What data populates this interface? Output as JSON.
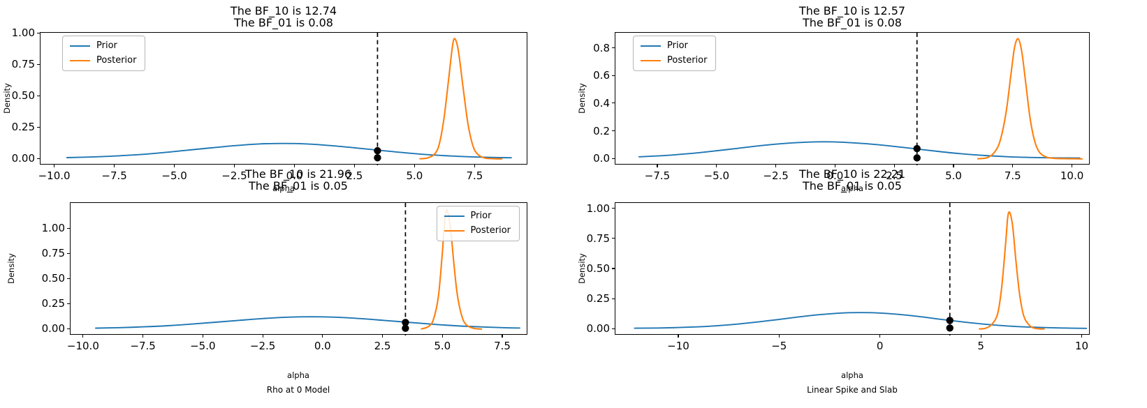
{
  "figure_title": "Prior vs Posterior density comparison with Bayes Factors",
  "colors": {
    "prior": "#1f77b4",
    "posterior": "#ff7f0e",
    "marker": "#000000",
    "vline": "#000000",
    "background": "#ffffff"
  },
  "legend_labels": {
    "prior": "Prior",
    "posterior": "Posterior"
  },
  "chart_data": [
    {
      "type": "line",
      "panel": "top-left",
      "title_lines": [
        "The BF_10 is 12.74",
        "The BF_01 is 0.08"
      ],
      "bf_10": 12.74,
      "bf_01": 0.08,
      "xlabel": "alpha",
      "ylabel": "Density",
      "model_label": null,
      "xlim": [
        -10.6,
        9.7
      ],
      "ylim": [
        -0.048,
        1.008
      ],
      "x_tick_values": [
        -10.0,
        -7.5,
        -5.0,
        -2.5,
        0.0,
        2.5,
        5.0,
        7.5
      ],
      "x_tick_labels": [
        "−10.0",
        "−7.5",
        "−5.0",
        "−2.5",
        "0.0",
        "2.5",
        "5.0",
        "7.5"
      ],
      "y_tick_values": [
        0.0,
        0.25,
        0.5,
        0.75,
        1.0
      ],
      "y_tick_labels": [
        "0.00",
        "0.25",
        "0.50",
        "0.75",
        "1.00"
      ],
      "legend_position": "upper-left",
      "observed_x": 3.43,
      "dot_densities": [
        0.068,
        0.012
      ],
      "series": [
        {
          "name": "Prior",
          "points": [
            [
              -9.5,
              0.013
            ],
            [
              -8.5,
              0.018
            ],
            [
              -7.5,
              0.026
            ],
            [
              -6.5,
              0.037
            ],
            [
              -5.5,
              0.053
            ],
            [
              -4.5,
              0.072
            ],
            [
              -3.5,
              0.091
            ],
            [
              -2.5,
              0.109
            ],
            [
              -1.5,
              0.122
            ],
            [
              -0.5,
              0.126
            ],
            [
              0.5,
              0.122
            ],
            [
              1.5,
              0.109
            ],
            [
              2.5,
              0.091
            ],
            [
              3.5,
              0.072
            ],
            [
              4.5,
              0.053
            ],
            [
              5.5,
              0.037
            ],
            [
              6.5,
              0.026
            ],
            [
              7.5,
              0.018
            ],
            [
              8.5,
              0.013
            ],
            [
              9.0,
              0.012
            ]
          ]
        },
        {
          "name": "Posterior",
          "points": [
            [
              5.2,
              0.004
            ],
            [
              5.5,
              0.01
            ],
            [
              5.8,
              0.04
            ],
            [
              6.0,
              0.12
            ],
            [
              6.2,
              0.33
            ],
            [
              6.4,
              0.65
            ],
            [
              6.55,
              0.9
            ],
            [
              6.65,
              0.96
            ],
            [
              6.8,
              0.86
            ],
            [
              7.0,
              0.56
            ],
            [
              7.2,
              0.28
            ],
            [
              7.4,
              0.11
            ],
            [
              7.6,
              0.04
            ],
            [
              7.9,
              0.01
            ],
            [
              8.3,
              0.004
            ],
            [
              8.6,
              0.003
            ]
          ]
        }
      ]
    },
    {
      "type": "line",
      "panel": "top-right",
      "title_lines": [
        "The BF_10 is 12.57",
        "The BF_01 is 0.08"
      ],
      "bf_10": 12.57,
      "bf_01": 0.08,
      "xlabel": "alpha",
      "ylabel": "Density",
      "model_label": null,
      "xlim": [
        -9.3,
        10.75
      ],
      "ylim": [
        -0.0435,
        0.9135
      ],
      "x_tick_values": [
        -7.5,
        -5.0,
        -2.5,
        0.0,
        2.5,
        5.0,
        7.5,
        10.0
      ],
      "x_tick_labels": [
        "−7.5",
        "−5.0",
        "−2.5",
        "0.0",
        "2.5",
        "5.0",
        "7.5",
        "10.0"
      ],
      "y_tick_values": [
        0.0,
        0.2,
        0.4,
        0.6,
        0.8
      ],
      "y_tick_labels": [
        "0.0",
        "0.2",
        "0.4",
        "0.6",
        "0.8"
      ],
      "legend_position": "upper-left",
      "observed_x": 3.43,
      "dot_densities": [
        0.077,
        0.01
      ],
      "series": [
        {
          "name": "Prior",
          "points": [
            [
              -8.3,
              0.018
            ],
            [
              -7.3,
              0.026
            ],
            [
              -6.3,
              0.039
            ],
            [
              -5.3,
              0.056
            ],
            [
              -4.3,
              0.076
            ],
            [
              -3.3,
              0.096
            ],
            [
              -2.3,
              0.112
            ],
            [
              -1.3,
              0.123
            ],
            [
              -0.5,
              0.126
            ],
            [
              0.3,
              0.123
            ],
            [
              1.3,
              0.112
            ],
            [
              2.3,
              0.096
            ],
            [
              3.3,
              0.077
            ],
            [
              4.3,
              0.057
            ],
            [
              5.3,
              0.04
            ],
            [
              6.3,
              0.027
            ],
            [
              7.3,
              0.018
            ],
            [
              8.3,
              0.013
            ],
            [
              9.3,
              0.01
            ],
            [
              10.3,
              0.009
            ]
          ]
        },
        {
          "name": "Posterior",
          "points": [
            [
              6.0,
              0.004
            ],
            [
              6.4,
              0.012
            ],
            [
              6.7,
              0.05
            ],
            [
              6.95,
              0.14
            ],
            [
              7.2,
              0.35
            ],
            [
              7.4,
              0.62
            ],
            [
              7.55,
              0.81
            ],
            [
              7.7,
              0.87
            ],
            [
              7.85,
              0.78
            ],
            [
              8.0,
              0.58
            ],
            [
              8.2,
              0.3
            ],
            [
              8.4,
              0.13
            ],
            [
              8.6,
              0.05
            ],
            [
              8.9,
              0.015
            ],
            [
              9.3,
              0.006
            ],
            [
              10.0,
              0.004
            ],
            [
              10.4,
              0.003
            ]
          ]
        }
      ]
    },
    {
      "type": "line",
      "panel": "bottom-left",
      "title_lines": [
        "The BF_10 is 21.96",
        "The BF_01 is 0.05"
      ],
      "bf_10": 21.96,
      "bf_01": 0.05,
      "xlabel": "alpha",
      "ylabel": "Density",
      "model_label": "Rho at 0 Model",
      "xlim": [
        -10.55,
        8.55
      ],
      "ylim": [
        -0.06,
        1.26
      ],
      "x_tick_values": [
        -10.0,
        -7.5,
        -5.0,
        -2.5,
        0.0,
        2.5,
        5.0,
        7.5
      ],
      "x_tick_labels": [
        "−10.0",
        "−7.5",
        "−5.0",
        "−2.5",
        "0.0",
        "2.5",
        "5.0",
        "7.5"
      ],
      "y_tick_values": [
        0.0,
        0.25,
        0.5,
        0.75,
        1.0
      ],
      "y_tick_labels": [
        "0.00",
        "0.25",
        "0.50",
        "0.75",
        "1.00"
      ],
      "legend_position": "upper-right",
      "observed_x": 3.43,
      "dot_densities": [
        0.07,
        0.012
      ],
      "series": [
        {
          "name": "Prior",
          "points": [
            [
              -9.5,
              0.013
            ],
            [
              -8.5,
              0.018
            ],
            [
              -7.5,
              0.026
            ],
            [
              -6.5,
              0.037
            ],
            [
              -5.5,
              0.053
            ],
            [
              -4.5,
              0.072
            ],
            [
              -3.5,
              0.091
            ],
            [
              -2.5,
              0.109
            ],
            [
              -1.5,
              0.122
            ],
            [
              -0.5,
              0.126
            ],
            [
              0.5,
              0.122
            ],
            [
              1.5,
              0.109
            ],
            [
              2.5,
              0.091
            ],
            [
              3.5,
              0.072
            ],
            [
              4.5,
              0.053
            ],
            [
              5.5,
              0.037
            ],
            [
              6.5,
              0.026
            ],
            [
              7.5,
              0.018
            ],
            [
              8.2,
              0.014
            ]
          ]
        },
        {
          "name": "Posterior",
          "points": [
            [
              4.1,
              0.005
            ],
            [
              4.4,
              0.03
            ],
            [
              4.6,
              0.1
            ],
            [
              4.8,
              0.32
            ],
            [
              4.95,
              0.7
            ],
            [
              5.05,
              1.02
            ],
            [
              5.15,
              1.19
            ],
            [
              5.3,
              1.03
            ],
            [
              5.45,
              0.66
            ],
            [
              5.6,
              0.34
            ],
            [
              5.8,
              0.12
            ],
            [
              6.0,
              0.04
            ],
            [
              6.3,
              0.01
            ],
            [
              6.6,
              0.004
            ]
          ]
        }
      ]
    },
    {
      "type": "line",
      "panel": "bottom-right",
      "title_lines": [
        "The BF_10 is 22.21",
        "The BF_01 is 0.05"
      ],
      "bf_10": 22.21,
      "bf_01": 0.05,
      "xlabel": "alpha",
      "ylabel": "Density",
      "model_label": "Linear Spike and Slab",
      "xlim": [
        -13.15,
        10.4
      ],
      "ylim": [
        -0.05,
        1.05
      ],
      "x_tick_values": [
        -10,
        -5,
        0,
        5,
        10
      ],
      "x_tick_labels": [
        "−10",
        "−5",
        "0",
        "5",
        "10"
      ],
      "y_tick_values": [
        0.0,
        0.25,
        0.5,
        0.75,
        1.0
      ],
      "y_tick_labels": [
        "0.00",
        "0.25",
        "0.50",
        "0.75",
        "1.00"
      ],
      "legend_position": null,
      "observed_x": 3.43,
      "dot_densities": [
        0.075,
        0.012
      ],
      "series": [
        {
          "name": "Prior",
          "points": [
            [
              -12.2,
              0.01
            ],
            [
              -11,
              0.012
            ],
            [
              -10,
              0.016
            ],
            [
              -9,
              0.022
            ],
            [
              -8,
              0.032
            ],
            [
              -7,
              0.046
            ],
            [
              -6,
              0.064
            ],
            [
              -5,
              0.084
            ],
            [
              -4,
              0.105
            ],
            [
              -3,
              0.123
            ],
            [
              -2,
              0.136
            ],
            [
              -1,
              0.14
            ],
            [
              0,
              0.136
            ],
            [
              1,
              0.123
            ],
            [
              2,
              0.105
            ],
            [
              3,
              0.084
            ],
            [
              4,
              0.064
            ],
            [
              5,
              0.046
            ],
            [
              6,
              0.032
            ],
            [
              7,
              0.022
            ],
            [
              8,
              0.016
            ],
            [
              9,
              0.012
            ],
            [
              10.2,
              0.009
            ]
          ]
        },
        {
          "name": "Posterior",
          "points": [
            [
              4.9,
              0.004
            ],
            [
              5.2,
              0.01
            ],
            [
              5.5,
              0.04
            ],
            [
              5.8,
              0.13
            ],
            [
              6.0,
              0.35
            ],
            [
              6.2,
              0.72
            ],
            [
              6.3,
              0.93
            ],
            [
              6.4,
              0.97
            ],
            [
              6.55,
              0.85
            ],
            [
              6.7,
              0.58
            ],
            [
              6.9,
              0.28
            ],
            [
              7.1,
              0.11
            ],
            [
              7.4,
              0.03
            ],
            [
              7.7,
              0.008
            ],
            [
              8.1,
              0.004
            ]
          ]
        }
      ]
    }
  ]
}
